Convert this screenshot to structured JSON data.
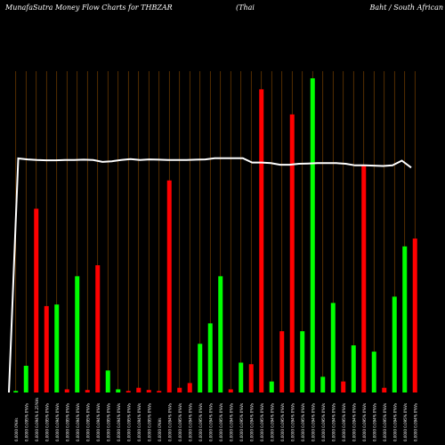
{
  "header": {
    "left": "MunafaSutra  Money Flow  Charts for THBZAR",
    "middle": "(Thai",
    "right": "Baht / South African"
  },
  "chart_data": {
    "type": "bar",
    "title": "MunafaSutra  Money Flow  Charts for THBZAR",
    "xlabel": "",
    "ylabel": "",
    "ylim": [
      0,
      100
    ],
    "grid": "vertical",
    "colors": {
      "up": "#00ff00",
      "down": "#ff0000",
      "line": "#ffffff",
      "grid": "#8a4b00",
      "background": "#000000"
    },
    "bars": [
      {
        "label": "0.0000 0%Vs",
        "value": 0.5,
        "dir": "up"
      },
      {
        "label": "0.0000 0.095% 0%Vs",
        "value": 8.5,
        "dir": "up"
      },
      {
        "label": "0.0000 0.094% 0.25%Vs",
        "value": 58.5,
        "dir": "down"
      },
      {
        "label": "0.0000 0.095% 0%Vs",
        "value": 27.5,
        "dir": "down"
      },
      {
        "label": "0.0000 0.094% 0%Vs",
        "value": 28,
        "dir": "up"
      },
      {
        "label": "0.0000 0.095% 0%Vs",
        "value": 1,
        "dir": "down"
      },
      {
        "label": "0.0000 0.094% 0%Vs",
        "value": 37,
        "dir": "up"
      },
      {
        "label": "0.0000 0.095% 0%Vs",
        "value": 0.8,
        "dir": "down"
      },
      {
        "label": "0.0000 0.094% 0%Vs",
        "value": 40.5,
        "dir": "down"
      },
      {
        "label": "0.0000 0.095% 0%Vs",
        "value": 7,
        "dir": "up"
      },
      {
        "label": "0.0000 0.094% 0%Vs",
        "value": 1,
        "dir": "up"
      },
      {
        "label": "0.0000 0.095% 0%Vs",
        "value": 0.5,
        "dir": "down"
      },
      {
        "label": "0.0000 0.094% 0%Vs",
        "value": 1.5,
        "dir": "down"
      },
      {
        "label": "0.0000 0.095% 0%Vs",
        "value": 0.8,
        "dir": "down"
      },
      {
        "label": "0.0000 0%Vs",
        "value": 0.5,
        "dir": "down"
      },
      {
        "label": "0.0000 0.094% 0%Vs",
        "value": 67.5,
        "dir": "down"
      },
      {
        "label": "0.0000 0.095% 0%Vs",
        "value": 1.5,
        "dir": "down"
      },
      {
        "label": "0.0000 0.094% 0%Vs",
        "value": 3,
        "dir": "down"
      },
      {
        "label": "0.0000 0.095% 0%Vs",
        "value": 15.5,
        "dir": "up"
      },
      {
        "label": "0.0000 0.094% 0%Vs",
        "value": 22,
        "dir": "up"
      },
      {
        "label": "0.0000 0.095% 0%Vs",
        "value": 37,
        "dir": "up"
      },
      {
        "label": "0.0000 0.094% 0%Vs",
        "value": 1,
        "dir": "down"
      },
      {
        "label": "0.0000 0.095% 0%Vs",
        "value": 9.5,
        "dir": "up"
      },
      {
        "label": "0.0000 0.094% 0%Vs",
        "value": 9,
        "dir": "down"
      },
      {
        "label": "0.0000 0.095% 0%Vs",
        "value": 96.5,
        "dir": "down"
      },
      {
        "label": "0.0000 0.094% 0%Vs",
        "value": 3.5,
        "dir": "up"
      },
      {
        "label": "0.0000 0.095% 0%Vs",
        "value": 19.5,
        "dir": "down"
      },
      {
        "label": "0.0000 0.094% 0%Vs",
        "value": 88.5,
        "dir": "down"
      },
      {
        "label": "0.0000 0.095% 0%Vs",
        "value": 19.5,
        "dir": "up"
      },
      {
        "label": "0.0000 0.094% 0%Vs",
        "value": 100,
        "dir": "up"
      },
      {
        "label": "0.0000 0.095% 0%Vs",
        "value": 5,
        "dir": "up"
      },
      {
        "label": "0.0000 0.094% 0%Vs",
        "value": 28.5,
        "dir": "up"
      },
      {
        "label": "0.0000 0.095% 0%Vs",
        "value": 3.5,
        "dir": "down"
      },
      {
        "label": "0.0000 0.094% 0%Vs",
        "value": 15,
        "dir": "up"
      },
      {
        "label": "0.0000 0.095% 0%Vs",
        "value": 72.5,
        "dir": "down"
      },
      {
        "label": "0.0000 0.094% 0%Vs",
        "value": 13,
        "dir": "up"
      },
      {
        "label": "0.0000 0.095% 0%Vs",
        "value": 1.5,
        "dir": "down"
      },
      {
        "label": "0.0000 0.094% 0%Vs",
        "value": 30.5,
        "dir": "up"
      },
      {
        "label": "0.0000 0.095% 0%Vs",
        "value": 46.5,
        "dir": "up"
      },
      {
        "label": "0.0000 0.094% 0%Vs",
        "value": 49,
        "dir": "down"
      }
    ],
    "line": [
      0,
      74.5,
      74.2,
      74,
      73.9,
      73.9,
      74,
      74,
      74.1,
      74,
      73.4,
      73.6,
      74,
      74.3,
      74,
      74.2,
      74.1,
      74,
      74,
      74,
      74.1,
      74.2,
      74.6,
      74.6,
      74.6,
      74.6,
      73.2,
      73.2,
      73,
      72.5,
      72.5,
      72.8,
      72.9,
      73,
      73,
      73,
      72.8,
      72.3,
      72.3,
      72.2,
      72.1,
      72.3,
      73.8,
      71.6
    ]
  }
}
